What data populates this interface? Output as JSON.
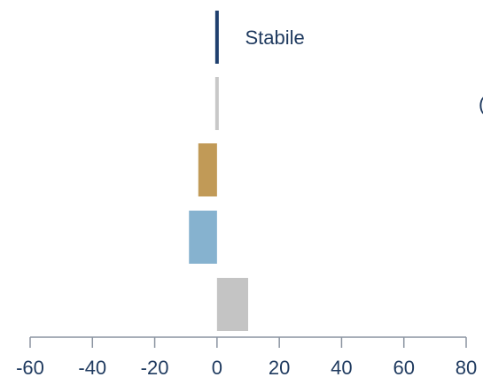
{
  "chart_data": {
    "type": "bar",
    "orientation": "horizontal",
    "categories": [
      "",
      "",
      "",
      "",
      ""
    ],
    "values": [
      0,
      0,
      -6,
      -9,
      10
    ],
    "colors": [
      "#1f3f6e",
      "#c8c8c8",
      "#c19a57",
      "#86b2cf",
      "#c4c4c4"
    ],
    "xlim": [
      -60,
      80
    ],
    "xticks": [
      -60,
      -40,
      -20,
      0,
      20,
      40,
      60,
      80
    ],
    "grid": false,
    "annotations": [
      {
        "text": "Stabile",
        "x": 9,
        "bar_index": 0
      },
      {
        "text": "(",
        "x": 84,
        "bar_index": 1
      }
    ],
    "axis_color": "#8a93a0"
  }
}
